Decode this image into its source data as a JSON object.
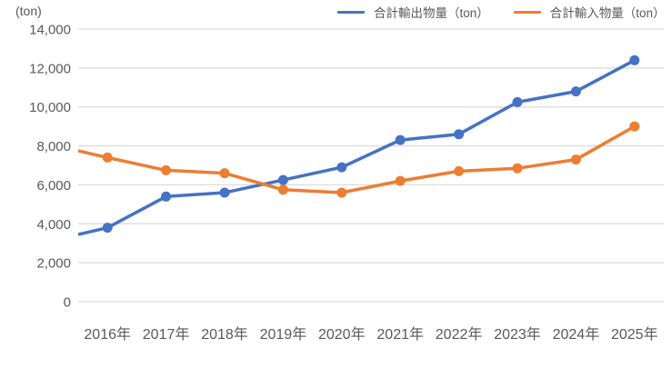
{
  "chart_data": {
    "type": "line",
    "title": "",
    "ylabel": "(ton)",
    "xlabel": "",
    "categories": [
      "2016年",
      "2017年",
      "2018年",
      "2019年",
      "2020年",
      "2021年",
      "2022年",
      "2023年",
      "2024年",
      "2025年"
    ],
    "series": [
      {
        "name": "合計輸出物量（ton）",
        "color": "#4472C4",
        "values": [
          3800,
          5400,
          5600,
          6250,
          6900,
          8300,
          8600,
          10250,
          10800,
          12400
        ],
        "left_edge_clip_value": 3450
      },
      {
        "name": "合計輸入物量（ton）",
        "color": "#ED7D31",
        "values": [
          7400,
          6750,
          6600,
          5750,
          5600,
          6200,
          6700,
          6850,
          7300,
          9000
        ],
        "left_edge_clip_value": 7750
      }
    ],
    "ylim": [
      0,
      14000
    ],
    "ytick_step": 2000,
    "grid": true,
    "markers": true,
    "legend_position": "top"
  },
  "colors": {
    "grid": "#D9D9D9",
    "text": "#595959",
    "background": "#FFFFFF"
  }
}
